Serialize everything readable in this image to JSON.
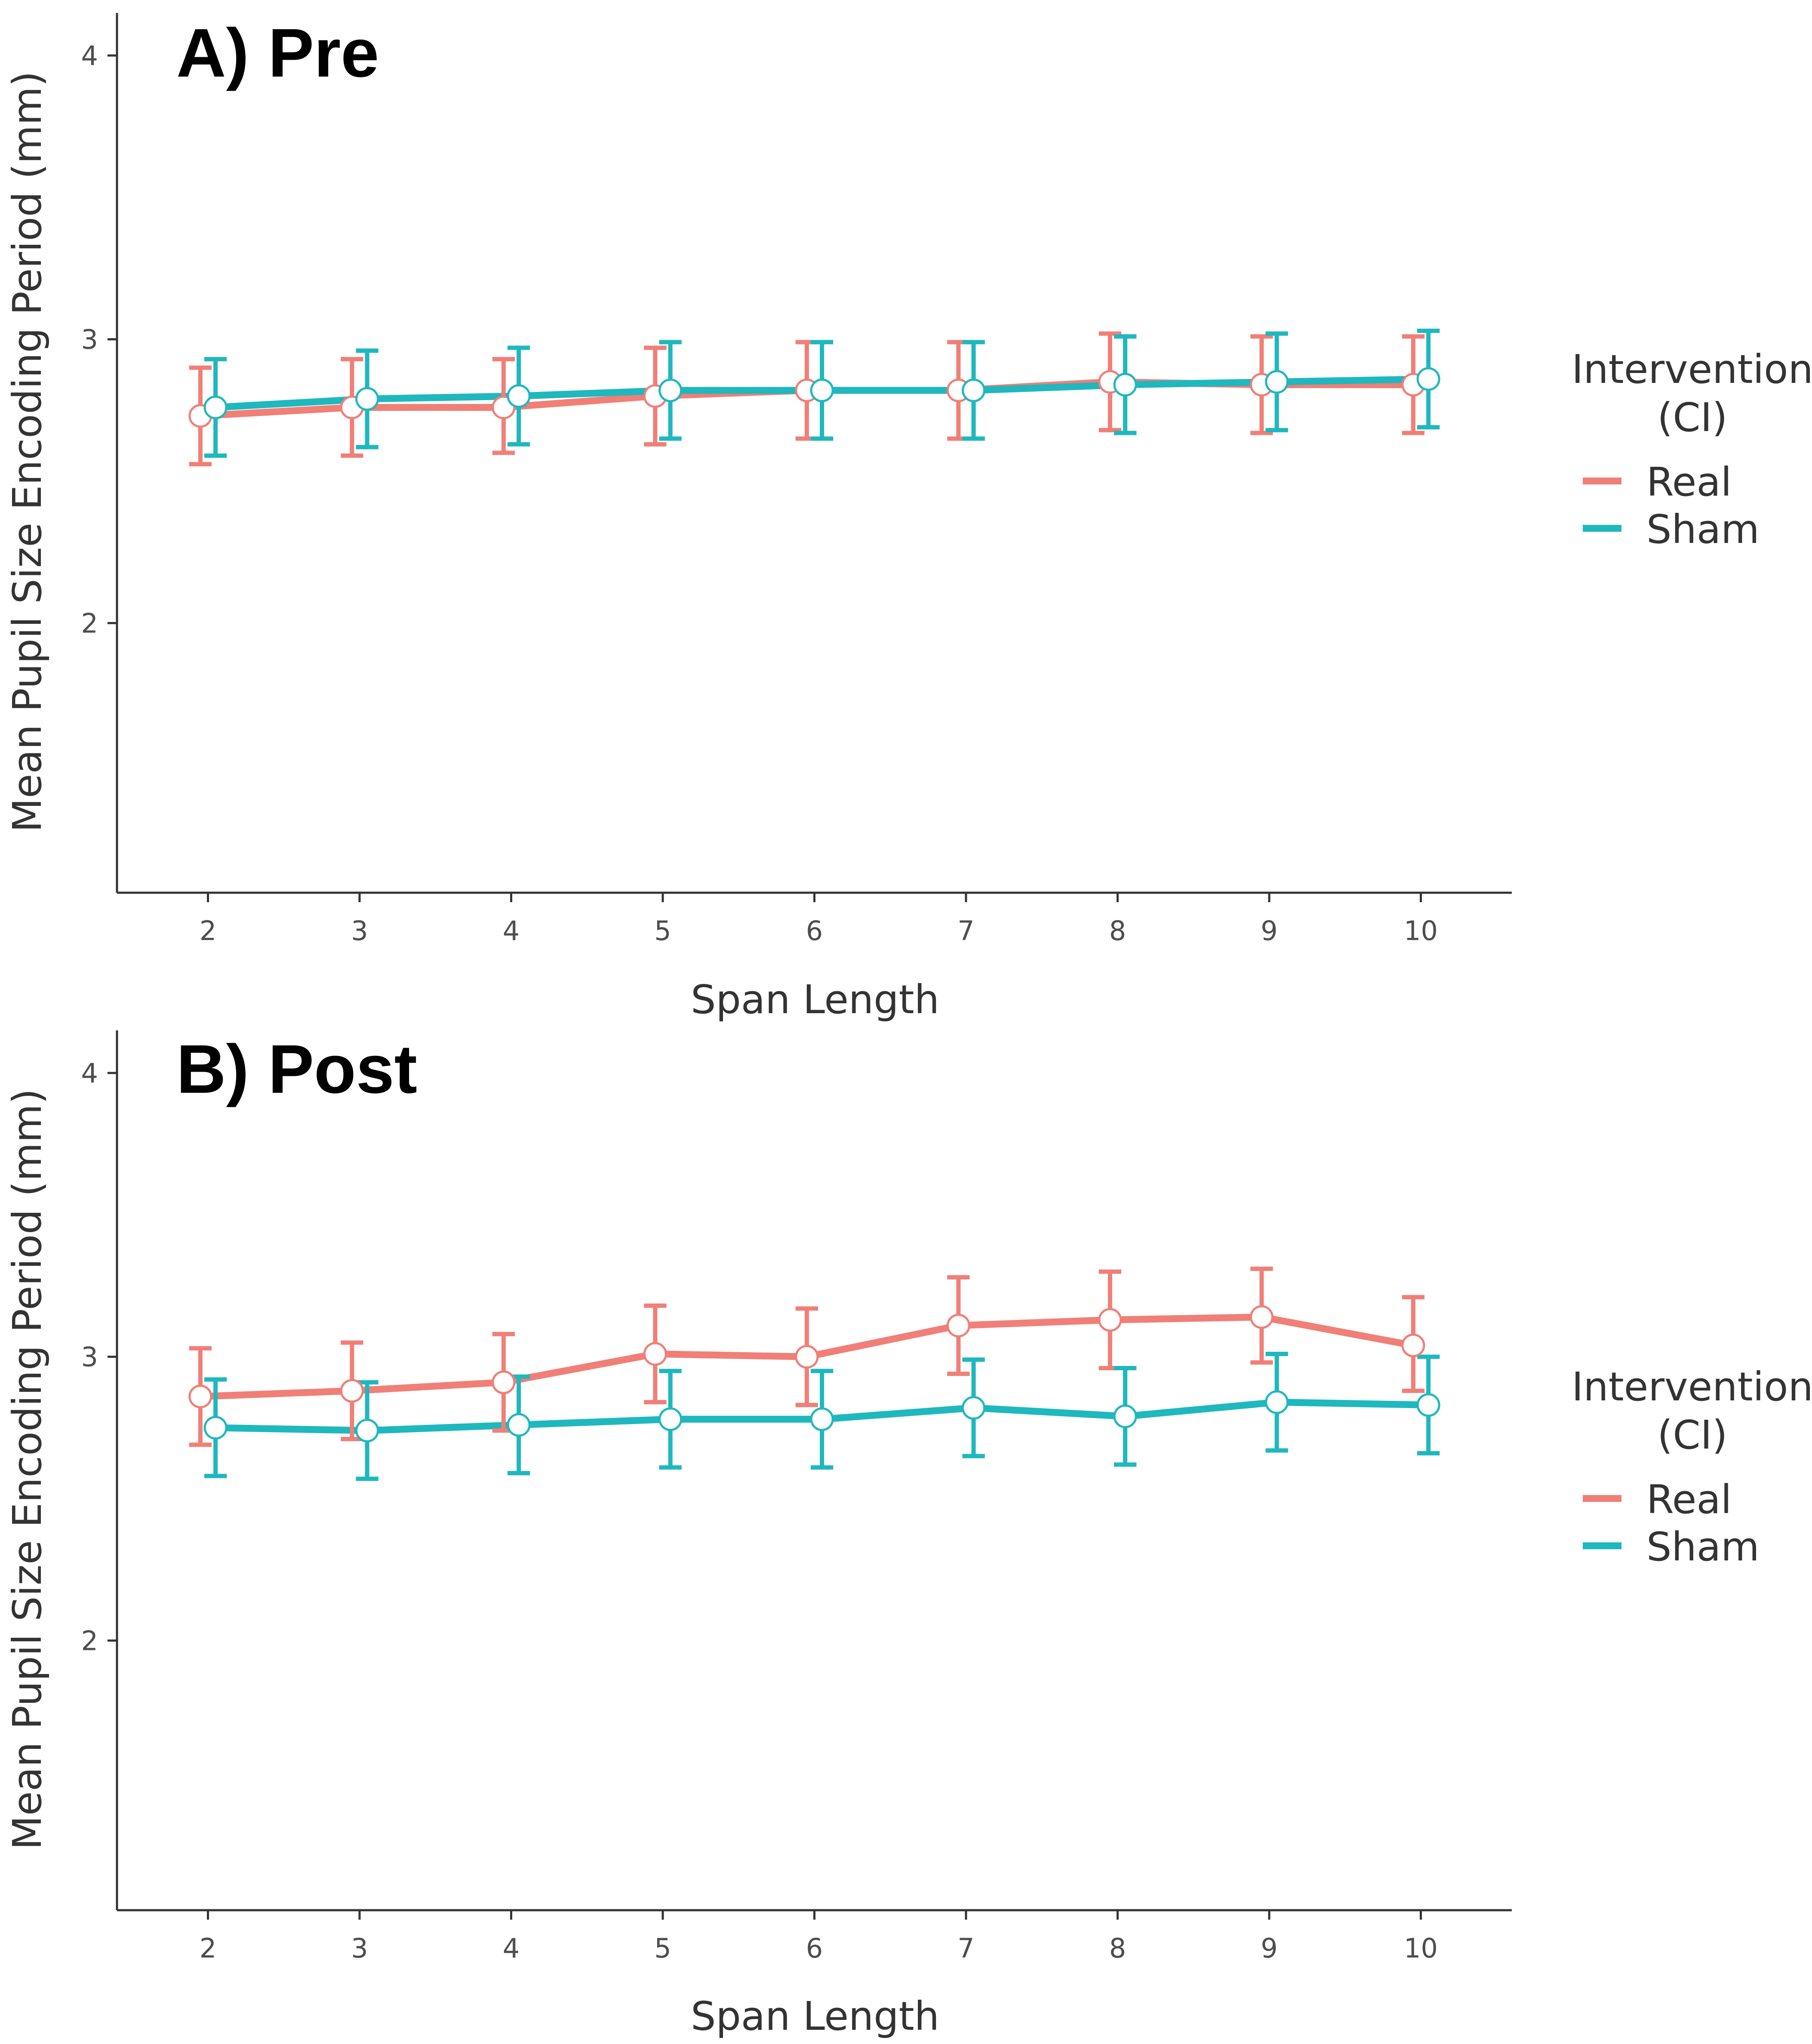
{
  "colors": {
    "real": "#F07F77",
    "sham": "#1EB8BE"
  },
  "chart_data": [
    {
      "type": "line",
      "panel_label": "A) Pre",
      "title": "A) Pre",
      "xlabel": "Span Length",
      "ylabel": "Mean Pupil Size Encoding Period (mm)",
      "x": [
        2,
        3,
        4,
        5,
        6,
        7,
        8,
        9,
        10
      ],
      "xticks": [
        "2",
        "3",
        "4",
        "5",
        "6",
        "7",
        "8",
        "9",
        "10"
      ],
      "yticks": [
        "2",
        "3",
        "4"
      ],
      "ylim": [
        1.05,
        4.15
      ],
      "legend": {
        "title_line1": "Intervention",
        "title_line2": "(CI)",
        "entries": [
          "Real",
          "Sham"
        ],
        "position": "right"
      },
      "series": [
        {
          "name": "Real",
          "values": [
            2.73,
            2.76,
            2.76,
            2.8,
            2.82,
            2.82,
            2.85,
            2.84,
            2.84
          ],
          "lower": [
            2.56,
            2.59,
            2.6,
            2.63,
            2.65,
            2.65,
            2.68,
            2.67,
            2.67
          ],
          "upper": [
            2.9,
            2.93,
            2.93,
            2.97,
            2.99,
            2.99,
            3.02,
            3.01,
            3.01
          ]
        },
        {
          "name": "Sham",
          "values": [
            2.76,
            2.79,
            2.8,
            2.82,
            2.82,
            2.82,
            2.84,
            2.85,
            2.86
          ],
          "lower": [
            2.59,
            2.62,
            2.63,
            2.65,
            2.65,
            2.65,
            2.67,
            2.68,
            2.69
          ],
          "upper": [
            2.93,
            2.96,
            2.97,
            2.99,
            2.99,
            2.99,
            3.01,
            3.02,
            3.03
          ]
        }
      ]
    },
    {
      "type": "line",
      "panel_label": "B) Post",
      "title": "B) Post",
      "xlabel": "Span Length",
      "ylabel": "Mean Pupil Size Encoding Period (mm)",
      "x": [
        2,
        3,
        4,
        5,
        6,
        7,
        8,
        9,
        10
      ],
      "xticks": [
        "2",
        "3",
        "4",
        "5",
        "6",
        "7",
        "8",
        "9",
        "10"
      ],
      "yticks": [
        "2",
        "3",
        "4"
      ],
      "ylim": [
        1.05,
        4.15
      ],
      "legend": {
        "title_line1": "Intervention",
        "title_line2": "(CI)",
        "entries": [
          "Real",
          "Sham"
        ],
        "position": "right"
      },
      "series": [
        {
          "name": "Real",
          "values": [
            2.86,
            2.88,
            2.91,
            3.01,
            3.0,
            3.11,
            3.13,
            3.14,
            3.04
          ],
          "lower": [
            2.69,
            2.71,
            2.74,
            2.84,
            2.83,
            2.94,
            2.96,
            2.98,
            2.88
          ],
          "upper": [
            3.03,
            3.05,
            3.08,
            3.18,
            3.17,
            3.28,
            3.3,
            3.31,
            3.21
          ]
        },
        {
          "name": "Sham",
          "values": [
            2.75,
            2.74,
            2.76,
            2.78,
            2.78,
            2.82,
            2.79,
            2.84,
            2.83
          ],
          "lower": [
            2.58,
            2.57,
            2.59,
            2.61,
            2.61,
            2.65,
            2.62,
            2.67,
            2.66
          ],
          "upper": [
            2.92,
            2.91,
            2.93,
            2.95,
            2.95,
            2.99,
            2.96,
            3.01,
            3.0
          ]
        }
      ]
    }
  ]
}
